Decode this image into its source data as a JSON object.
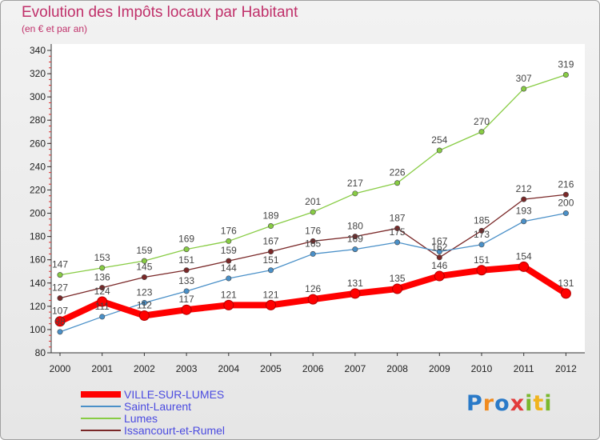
{
  "chart_data": {
    "type": "line",
    "title": "Evolution des Impôts locaux par Habitant",
    "subtitle": "(en € et par an)",
    "x": [
      "2000",
      "2001",
      "2002",
      "2003",
      "2004",
      "2005",
      "2006",
      "2007",
      "2008",
      "2009",
      "2010",
      "2011",
      "2012"
    ],
    "ylim": [
      80,
      340
    ],
    "yticks": [
      80,
      100,
      120,
      140,
      160,
      180,
      200,
      220,
      240,
      260,
      280,
      300,
      320,
      340
    ],
    "grid": false,
    "legend": "bottom-left",
    "series": [
      {
        "name": "VILLE-SUR-LUMES",
        "color": "#ff0000",
        "values": [
          107,
          124,
          112,
          117,
          121,
          121,
          126,
          131,
          135,
          146,
          151,
          154,
          131
        ]
      },
      {
        "name": "Saint-Laurent",
        "color": "#4a90c8",
        "values": [
          98,
          111,
          123,
          133,
          144,
          151,
          165,
          169,
          175,
          167,
          173,
          193,
          200
        ]
      },
      {
        "name": "Lumes",
        "color": "#88cc44",
        "values": [
          147,
          153,
          159,
          169,
          176,
          189,
          201,
          217,
          226,
          254,
          270,
          307,
          319
        ]
      },
      {
        "name": "Issancourt-et-Rumel",
        "color": "#7a2828",
        "values": [
          127,
          136,
          145,
          151,
          159,
          167,
          176,
          180,
          187,
          162,
          185,
          212,
          216
        ]
      }
    ]
  },
  "logo": {
    "letters": [
      "P",
      "r",
      "o",
      "x",
      "i",
      "t",
      "i"
    ],
    "colors": [
      "#2a7ac8",
      "#f08a1e",
      "#2a7ac8",
      "#e23c3c",
      "#7ab82e",
      "#f0b41e",
      "#7ab82e"
    ]
  }
}
